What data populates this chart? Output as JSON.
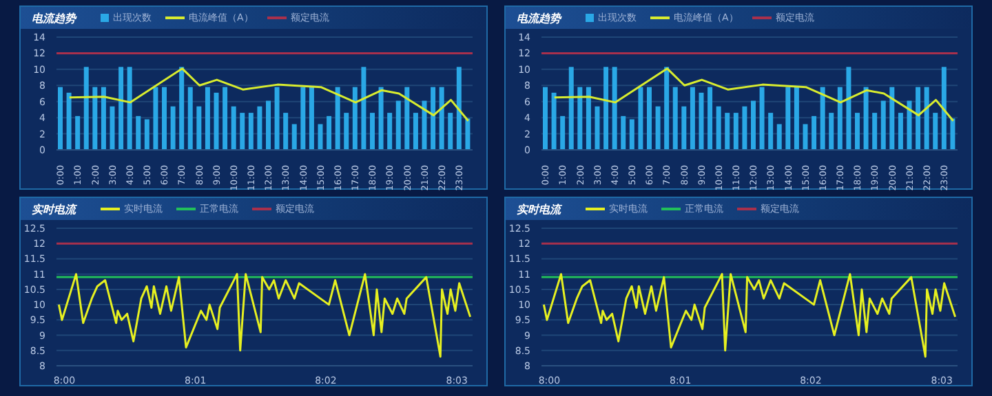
{
  "chart_data": [
    {
      "type": "bar",
      "title": "电流趋势",
      "categories": [
        "0:00",
        null,
        "1:00",
        null,
        "2:00",
        null,
        "3:00",
        null,
        "4:00",
        null,
        "5:00",
        null,
        "6:00",
        null,
        "7:00",
        null,
        "8:00",
        null,
        "9:00",
        null,
        "10:00",
        null,
        "11:00",
        null,
        "12:00",
        null,
        "13:00",
        null,
        "14:00",
        null,
        "15:00",
        null,
        "16:00",
        null,
        "17:00",
        null,
        "18:00",
        null,
        "19:00",
        null,
        "20:00",
        null,
        "21:00",
        null,
        "22:00",
        null,
        "23:00",
        null
      ],
      "series": [
        {
          "name": "出现次数",
          "type": "bar",
          "color": "#2aa8e6",
          "values": [
            7.8,
            7.1,
            4.2,
            10.3,
            7.8,
            7.8,
            5.4,
            10.3,
            10.3,
            4.2,
            3.8,
            7.8,
            7.8,
            5.4,
            10.3,
            7.8,
            5.4,
            7.8,
            7.1,
            7.8,
            5.4,
            4.6,
            4.6,
            5.4,
            6.1,
            7.8,
            4.6,
            3.2,
            7.8,
            7.8,
            3.2,
            4.2,
            7.8,
            4.6,
            7.8,
            10.3,
            4.6,
            7.8,
            4.6,
            6.1,
            7.8,
            4.6,
            6.1,
            7.8,
            7.8,
            4.6,
            10.3,
            3.9
          ]
        },
        {
          "name": "电流峰值（A）",
          "type": "line",
          "color": "#d8ec2e",
          "values": [
            null,
            6.5,
            null,
            null,
            null,
            6.6,
            null,
            null,
            5.9,
            null,
            null,
            null,
            null,
            null,
            10.1,
            null,
            8.0,
            null,
            8.7,
            null,
            null,
            7.5,
            null,
            null,
            null,
            8.1,
            null,
            null,
            null,
            null,
            7.8,
            null,
            null,
            null,
            5.9,
            null,
            null,
            7.4,
            null,
            7.0,
            null,
            null,
            null,
            4.3,
            null,
            6.2,
            null,
            3.6
          ]
        }
      ],
      "ref_lines": [
        {
          "axis": "y",
          "value": 12,
          "label": "额定电流",
          "color": "#a8304c"
        }
      ],
      "ylim": [
        0,
        14
      ],
      "yticks": [
        0,
        2,
        4,
        6,
        8,
        10,
        12,
        14
      ],
      "grid": "y",
      "legend": "top",
      "marker": "none"
    },
    {
      "type": "bar",
      "title": "电流趋势",
      "categories": [
        "0:00",
        null,
        "1:00",
        null,
        "2:00",
        null,
        "3:00",
        null,
        "4:00",
        null,
        "5:00",
        null,
        "6:00",
        null,
        "7:00",
        null,
        "8:00",
        null,
        "9:00",
        null,
        "10:00",
        null,
        "11:00",
        null,
        "12:00",
        null,
        "13:00",
        null,
        "14:00",
        null,
        "15:00",
        null,
        "16:00",
        null,
        "17:00",
        null,
        "18:00",
        null,
        "19:00",
        null,
        "20:00",
        null,
        "21:00",
        null,
        "22:00",
        null,
        "23:00",
        null
      ],
      "series": [
        {
          "name": "出现次数",
          "type": "bar",
          "color": "#2aa8e6",
          "values": [
            7.8,
            7.1,
            4.2,
            10.3,
            7.8,
            7.8,
            5.4,
            10.3,
            10.3,
            4.2,
            3.8,
            7.8,
            7.8,
            5.4,
            10.3,
            7.8,
            5.4,
            7.8,
            7.1,
            7.8,
            5.4,
            4.6,
            4.6,
            5.4,
            6.1,
            7.8,
            4.6,
            3.2,
            7.8,
            7.8,
            3.2,
            4.2,
            7.8,
            4.6,
            7.8,
            10.3,
            4.6,
            7.8,
            4.6,
            6.1,
            7.8,
            4.6,
            6.1,
            7.8,
            7.8,
            4.6,
            10.3,
            3.9
          ]
        },
        {
          "name": "电流峰值（A）",
          "type": "line",
          "color": "#d8ec2e",
          "values": [
            null,
            6.5,
            null,
            null,
            null,
            6.6,
            null,
            null,
            5.9,
            null,
            null,
            null,
            null,
            null,
            10.1,
            null,
            8.0,
            null,
            8.7,
            null,
            null,
            7.5,
            null,
            null,
            null,
            8.1,
            null,
            null,
            null,
            null,
            7.8,
            null,
            null,
            null,
            5.9,
            null,
            null,
            7.4,
            null,
            7.0,
            null,
            null,
            null,
            4.3,
            null,
            6.2,
            null,
            3.6
          ]
        }
      ],
      "ref_lines": [
        {
          "axis": "y",
          "value": 12,
          "label": "额定电流",
          "color": "#a8304c"
        }
      ],
      "ylim": [
        0,
        14
      ],
      "yticks": [
        0,
        2,
        4,
        6,
        8,
        10,
        12,
        14
      ],
      "grid": "y",
      "legend": "top",
      "marker": "none"
    },
    {
      "type": "line",
      "title": "实时电流",
      "x": [
        7.9993,
        7.9997,
        8.0015,
        8.0024,
        8.0035,
        8.0042,
        8.0052,
        8.0066,
        8.0068,
        8.0073,
        8.008,
        8.0088,
        8.0098,
        8.0105,
        8.0111,
        8.0114,
        8.0122,
        8.013,
        8.0136,
        8.0146,
        8.0155,
        8.0174,
        8.0181,
        8.0185,
        8.0195,
        8.0198,
        8.022,
        8.0224,
        8.0231,
        8.025,
        8.0252,
        8.0261,
        8.0267,
        8.0273,
        8.0282,
        8.0293,
        8.0299,
        8.0337,
        8.0345,
        8.0363,
        8.0383,
        8.0394,
        8.0398,
        8.0404,
        8.0408,
        8.0418,
        8.0424,
        8.0433,
        8.0436,
        8.0461,
        8.0479,
        8.0481,
        8.0488,
        8.0492,
        8.0498,
        8.0503,
        8.0517
      ],
      "series": [
        {
          "name": "实时电流",
          "color": "#e6f020",
          "values": [
            10.0,
            9.5,
            11.0,
            9.4,
            10.2,
            10.6,
            10.8,
            9.4,
            9.8,
            9.5,
            9.7,
            8.8,
            10.2,
            10.6,
            9.9,
            10.6,
            9.7,
            10.6,
            9.8,
            10.9,
            8.6,
            9.8,
            9.5,
            10.0,
            9.2,
            9.9,
            11.0,
            8.5,
            11.0,
            9.1,
            10.9,
            10.5,
            10.8,
            10.2,
            10.8,
            10.2,
            10.7,
            10.0,
            10.8,
            9.0,
            11.0,
            9.0,
            10.5,
            9.1,
            10.2,
            9.7,
            10.2,
            9.7,
            10.2,
            10.9,
            8.3,
            10.5,
            9.7,
            10.5,
            9.8,
            10.7,
            9.6
          ]
        }
      ],
      "ref_lines": [
        {
          "axis": "y",
          "value": 10.9,
          "label": "正常电流",
          "color": "#22c05a"
        },
        {
          "axis": "y",
          "value": 12,
          "label": "额定电流",
          "color": "#a8304c"
        }
      ],
      "xlim": [
        7.999,
        8.052
      ],
      "xticks": [
        {
          "value": 8,
          "label": "8:00"
        },
        {
          "value": 8.0167,
          "label": "8:01"
        },
        {
          "value": 8.0333,
          "label": "8:02"
        },
        {
          "value": 8.05,
          "label": "8:03"
        }
      ],
      "ylim": [
        8,
        12.5
      ],
      "yticks": [
        8,
        8.5,
        9,
        9.5,
        10,
        10.5,
        11,
        11.5,
        12,
        12.5
      ],
      "grid": "y",
      "legend": "top",
      "marker": "none"
    },
    {
      "type": "line",
      "title": "实时电流",
      "x": [
        7.9993,
        7.9997,
        8.0015,
        8.0024,
        8.0035,
        8.0042,
        8.0052,
        8.0066,
        8.0068,
        8.0073,
        8.008,
        8.0088,
        8.0098,
        8.0105,
        8.0111,
        8.0114,
        8.0122,
        8.013,
        8.0136,
        8.0146,
        8.0155,
        8.0174,
        8.0181,
        8.0185,
        8.0195,
        8.0198,
        8.022,
        8.0224,
        8.0231,
        8.025,
        8.0252,
        8.0261,
        8.0267,
        8.0273,
        8.0282,
        8.0293,
        8.0299,
        8.0337,
        8.0345,
        8.0363,
        8.0383,
        8.0394,
        8.0398,
        8.0404,
        8.0408,
        8.0418,
        8.0424,
        8.0433,
        8.0436,
        8.0461,
        8.0479,
        8.0481,
        8.0488,
        8.0492,
        8.0498,
        8.0503,
        8.0517
      ],
      "series": [
        {
          "name": "实时电流",
          "color": "#e6f020",
          "values": [
            10.0,
            9.5,
            11.0,
            9.4,
            10.2,
            10.6,
            10.8,
            9.4,
            9.8,
            9.5,
            9.7,
            8.8,
            10.2,
            10.6,
            9.9,
            10.6,
            9.7,
            10.6,
            9.8,
            10.9,
            8.6,
            9.8,
            9.5,
            10.0,
            9.2,
            9.9,
            11.0,
            8.5,
            11.0,
            9.1,
            10.9,
            10.5,
            10.8,
            10.2,
            10.8,
            10.2,
            10.7,
            10.0,
            10.8,
            9.0,
            11.0,
            9.0,
            10.5,
            9.1,
            10.2,
            9.7,
            10.2,
            9.7,
            10.2,
            10.9,
            8.3,
            10.5,
            9.7,
            10.5,
            9.8,
            10.7,
            9.6
          ]
        }
      ],
      "ref_lines": [
        {
          "axis": "y",
          "value": 10.9,
          "label": "正常电流",
          "color": "#22c05a"
        },
        {
          "axis": "y",
          "value": 12,
          "label": "额定电流",
          "color": "#a8304c"
        }
      ],
      "xlim": [
        7.999,
        8.052
      ],
      "xticks": [
        {
          "value": 8,
          "label": "8:00"
        },
        {
          "value": 8.0167,
          "label": "8:01"
        },
        {
          "value": 8.0333,
          "label": "8:02"
        },
        {
          "value": 8.05,
          "label": "8:03"
        }
      ],
      "ylim": [
        8,
        12.5
      ],
      "yticks": [
        8,
        8.5,
        9,
        9.5,
        10,
        10.5,
        11,
        11.5,
        12,
        12.5
      ],
      "grid": "y",
      "legend": "top",
      "marker": "none"
    }
  ]
}
